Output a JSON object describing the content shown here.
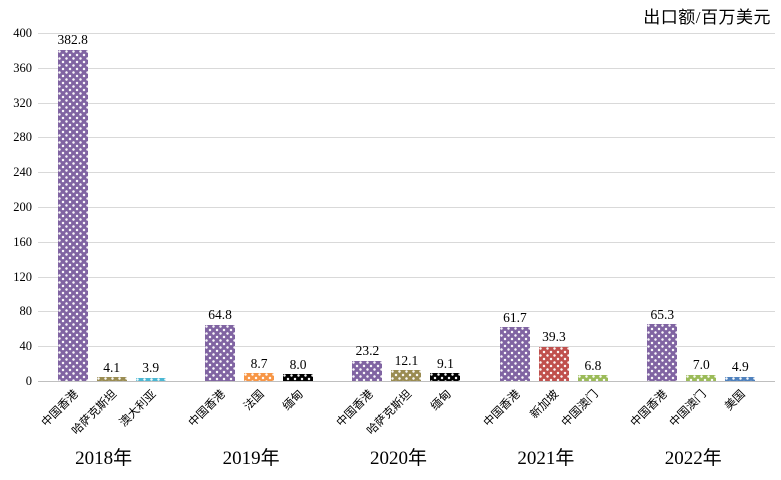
{
  "chart_data": {
    "type": "bar",
    "title": "出口额/百万美元",
    "xlabel": "",
    "ylabel": "",
    "ylim": [
      0,
      400
    ],
    "y_ticks": [
      "0",
      "40",
      "80",
      "120",
      "160",
      "200",
      "240",
      "280",
      "320",
      "360",
      "400"
    ],
    "grid": "horizontal",
    "legend": "none",
    "bar_pattern": "white-dots",
    "gridline_color": "#d9d9d9",
    "groups": [
      {
        "year": "2018年",
        "bars": [
          {
            "country": "中国香港",
            "value": 382.8,
            "value_label": "382.8",
            "color": "#8064a2"
          },
          {
            "country": "哈萨克斯坦",
            "value": 4.1,
            "value_label": "4.1",
            "color": "#9a8c52"
          },
          {
            "country": "澳大利亚",
            "value": 3.9,
            "value_label": "3.9",
            "color": "#4bb7d3"
          }
        ]
      },
      {
        "year": "2019年",
        "bars": [
          {
            "country": "中国香港",
            "value": 64.8,
            "value_label": "64.8",
            "color": "#8064a2"
          },
          {
            "country": "法国",
            "value": 8.7,
            "value_label": "8.7",
            "color": "#f79646"
          },
          {
            "country": "缅甸",
            "value": 8.0,
            "value_label": "8.0",
            "color": "#000000"
          }
        ]
      },
      {
        "year": "2020年",
        "bars": [
          {
            "country": "中国香港",
            "value": 23.2,
            "value_label": "23.2",
            "color": "#8064a2"
          },
          {
            "country": "哈萨克斯坦",
            "value": 12.1,
            "value_label": "12.1",
            "color": "#9a8c52"
          },
          {
            "country": "缅甸",
            "value": 9.1,
            "value_label": "9.1",
            "color": "#000000"
          }
        ]
      },
      {
        "year": "2021年",
        "bars": [
          {
            "country": "中国香港",
            "value": 61.7,
            "value_label": "61.7",
            "color": "#8064a2"
          },
          {
            "country": "新加坡",
            "value": 39.3,
            "value_label": "39.3",
            "color": "#c0504d"
          },
          {
            "country": "中国澳门",
            "value": 6.8,
            "value_label": "6.8",
            "color": "#9bbb59"
          }
        ]
      },
      {
        "year": "2022年",
        "bars": [
          {
            "country": "中国香港",
            "value": 65.3,
            "value_label": "65.3",
            "color": "#8064a2"
          },
          {
            "country": "中国澳门",
            "value": 7.0,
            "value_label": "7.0",
            "color": "#9bbb59"
          },
          {
            "country": "美国",
            "value": 4.9,
            "value_label": "4.9",
            "color": "#4f81bd"
          }
        ]
      }
    ]
  }
}
